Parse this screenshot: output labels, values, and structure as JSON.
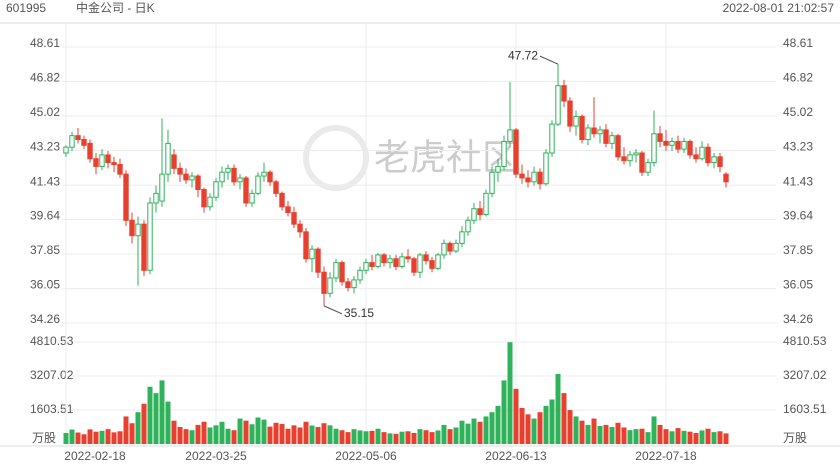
{
  "header": {
    "code": "601995",
    "name": "中金公司 - 日K",
    "time": "2022-08-01 21:02:57"
  },
  "watermark": "老虎社区",
  "chart_data": {
    "type": "candlestick",
    "categories": [
      "2022-02-18",
      null,
      null,
      null,
      null,
      null,
      null,
      null,
      null,
      null,
      null,
      null,
      null,
      null,
      null,
      null,
      null,
      null,
      null,
      null,
      null,
      null,
      null,
      null,
      null,
      "2022-03-25",
      null,
      null,
      null,
      null,
      null,
      null,
      null,
      null,
      null,
      null,
      null,
      null,
      null,
      null,
      null,
      null,
      null,
      null,
      null,
      null,
      null,
      null,
      null,
      null,
      "2022-05-06",
      null,
      null,
      null,
      null,
      null,
      null,
      null,
      null,
      null,
      null,
      null,
      null,
      null,
      null,
      null,
      null,
      null,
      null,
      null,
      null,
      null,
      null,
      null,
      null,
      "2022-06-13",
      null,
      null,
      null,
      null,
      null,
      null,
      null,
      null,
      null,
      null,
      null,
      null,
      null,
      null,
      null,
      null,
      null,
      null,
      null,
      null,
      null,
      null,
      null,
      null,
      "2022-07-18",
      null,
      null,
      null,
      null,
      null,
      null,
      null,
      null,
      null,
      null
    ],
    "open": [
      43.1,
      43.4,
      44.0,
      43.8,
      43.6,
      42.8,
      42.4,
      43.0,
      42.6,
      42.5,
      42.0,
      39.6,
      38.8,
      39.4,
      37.0,
      40.5,
      40.6,
      42.0,
      43.0,
      42.3,
      42.0,
      41.7,
      41.9,
      41.2,
      40.3,
      40.8,
      41.6,
      42.1,
      42.3,
      41.6,
      41.8,
      40.5,
      41.0,
      41.9,
      42.1,
      41.6,
      41.0,
      40.3,
      40.0,
      39.4,
      39.0,
      37.6,
      38.1,
      36.9,
      35.8,
      36.6,
      37.4,
      36.4,
      36.1,
      36.5,
      37.0,
      37.4,
      37.2,
      37.8,
      37.4,
      37.6,
      37.2,
      37.7,
      37.6,
      36.9,
      37.8,
      37.5,
      37.1,
      37.8,
      38.4,
      38.0,
      38.4,
      39.0,
      39.6,
      40.2,
      39.9,
      41.0,
      42.1,
      42.4,
      43.7,
      44.3,
      42.0,
      41.8,
      41.6,
      42.1,
      41.5,
      43.1,
      44.6,
      46.6,
      45.8,
      44.5,
      45.0,
      43.8,
      44.4,
      44.1,
      44.3,
      43.6,
      44.0,
      42.9,
      42.7,
      43.0,
      43.1,
      42.1,
      42.6,
      44.1,
      43.7,
      43.5,
      43.7,
      43.3,
      43.7,
      43.0,
      42.8,
      43.4,
      42.6,
      42.9,
      42.0
    ],
    "high": [
      43.5,
      44.2,
      44.4,
      44.0,
      43.8,
      43.1,
      43.3,
      43.2,
      42.9,
      42.8,
      42.2,
      40.0,
      39.8,
      39.6,
      40.8,
      41.4,
      44.9,
      44.3,
      43.3,
      42.6,
      42.3,
      42.1,
      42.0,
      41.3,
      41.0,
      41.8,
      42.4,
      42.5,
      42.5,
      42.0,
      41.9,
      41.2,
      42.1,
      42.6,
      42.2,
      41.7,
      41.1,
      40.6,
      40.3,
      39.6,
      39.2,
      38.3,
      38.2,
      37.2,
      36.9,
      37.6,
      37.5,
      36.6,
      36.7,
      37.2,
      37.6,
      37.8,
      37.9,
      37.9,
      37.8,
      37.8,
      37.9,
      38.1,
      37.7,
      37.9,
      38.0,
      37.7,
      37.9,
      38.6,
      38.5,
      38.6,
      39.3,
      39.8,
      40.5,
      40.6,
      41.2,
      42.4,
      42.8,
      44.0,
      46.8,
      44.4,
      42.5,
      42.2,
      42.4,
      42.3,
      43.3,
      44.8,
      47.72,
      46.9,
      46.0,
      45.3,
      45.1,
      44.6,
      46.0,
      44.5,
      44.6,
      44.2,
      44.1,
      43.4,
      43.2,
      43.3,
      43.2,
      42.8,
      45.3,
      44.5,
      44.3,
      43.9,
      44.0,
      43.9,
      43.8,
      43.4,
      43.7,
      43.6,
      43.1,
      43.1,
      42.1
    ],
    "low": [
      42.9,
      43.2,
      43.6,
      43.3,
      42.6,
      42.0,
      42.2,
      42.3,
      42.1,
      41.8,
      39.3,
      38.4,
      36.2,
      36.7,
      36.8,
      40.0,
      40.3,
      41.6,
      42.0,
      41.6,
      41.5,
      41.3,
      40.8,
      40.0,
      40.1,
      40.6,
      41.3,
      41.7,
      41.4,
      41.2,
      40.3,
      40.3,
      40.9,
      41.6,
      41.4,
      40.8,
      40.1,
      39.8,
      39.2,
      38.7,
      37.4,
      36.9,
      36.6,
      35.15,
      35.6,
      36.4,
      36.2,
      35.9,
      35.8,
      36.3,
      36.8,
      37.0,
      37.1,
      37.2,
      37.1,
      37.0,
      37.1,
      37.4,
      36.7,
      36.6,
      37.3,
      36.9,
      37.0,
      37.6,
      37.8,
      37.9,
      38.2,
      38.8,
      39.4,
      39.6,
      39.8,
      40.8,
      41.6,
      42.2,
      43.4,
      41.8,
      41.5,
      41.3,
      41.4,
      41.2,
      41.4,
      42.9,
      44.5,
      45.5,
      44.2,
      44.0,
      43.6,
      43.5,
      43.9,
      43.6,
      43.4,
      43.3,
      42.7,
      42.5,
      42.4,
      42.6,
      41.9,
      41.9,
      42.4,
      43.4,
      43.2,
      43.2,
      43.1,
      43.1,
      42.8,
      42.6,
      42.7,
      42.4,
      42.3,
      42.1,
      41.3
    ],
    "close": [
      43.4,
      44.0,
      43.8,
      43.5,
      42.8,
      42.4,
      43.0,
      42.6,
      42.5,
      42.0,
      39.6,
      38.8,
      39.4,
      37.0,
      40.5,
      41.0,
      42.0,
      43.6,
      42.3,
      42.0,
      41.7,
      41.9,
      41.2,
      40.3,
      40.8,
      41.6,
      42.1,
      42.3,
      41.6,
      41.8,
      40.5,
      41.0,
      41.9,
      42.1,
      41.6,
      41.0,
      40.3,
      40.0,
      39.4,
      39.0,
      37.6,
      38.1,
      36.9,
      35.8,
      36.6,
      37.4,
      36.4,
      36.1,
      36.5,
      37.0,
      37.4,
      37.2,
      37.8,
      37.4,
      37.6,
      37.2,
      37.7,
      37.6,
      36.9,
      37.8,
      37.5,
      37.1,
      37.8,
      38.4,
      38.0,
      38.4,
      39.0,
      39.6,
      40.2,
      39.9,
      41.0,
      42.1,
      42.4,
      43.7,
      44.3,
      42.0,
      41.8,
      41.6,
      42.1,
      41.5,
      43.1,
      44.6,
      46.6,
      45.8,
      44.5,
      45.0,
      43.8,
      44.4,
      44.1,
      44.3,
      43.6,
      44.0,
      42.9,
      42.7,
      43.0,
      43.1,
      42.1,
      42.6,
      44.1,
      43.7,
      43.5,
      43.7,
      43.3,
      43.7,
      43.0,
      42.8,
      43.4,
      42.6,
      42.9,
      42.4,
      41.6
    ],
    "volume": [
      520,
      680,
      540,
      460,
      690,
      580,
      620,
      700,
      550,
      600,
      1300,
      980,
      1500,
      1900,
      2700,
      2400,
      3000,
      2000,
      1100,
      800,
      700,
      650,
      900,
      1050,
      780,
      880,
      1050,
      720,
      650,
      1200,
      1100,
      930,
      1250,
      1150,
      820,
      1000,
      950,
      720,
      880,
      780,
      1050,
      870,
      800,
      980,
      880,
      720,
      650,
      560,
      700,
      640,
      600,
      620,
      720,
      560,
      500,
      480,
      580,
      600,
      520,
      700,
      650,
      560,
      640,
      900,
      700,
      780,
      1100,
      960,
      1200,
      1050,
      1300,
      1500,
      1800,
      3000,
      4800,
      2600,
      1700,
      1400,
      1200,
      1500,
      1800,
      2100,
      3300,
      2400,
      1600,
      1300,
      1100,
      900,
      1200,
      850,
      900,
      800,
      1000,
      780,
      650,
      700,
      720,
      560,
      1300,
      900,
      700,
      600,
      750,
      620,
      580,
      520,
      640,
      720,
      560,
      600,
      500
    ],
    "up_color": "#2fb35a",
    "down_color": "#e8402f",
    "ylim": [
      34.26,
      48.61
    ],
    "yticks": [
      34.26,
      36.05,
      37.85,
      39.64,
      41.43,
      43.23,
      45.02,
      46.82,
      48.61
    ],
    "y2lim": [
      0,
      4810.53
    ],
    "y2ticks": [
      1603.51,
      3207.02,
      4810.53
    ],
    "y2_unit": "万股",
    "grid": true
  }
}
